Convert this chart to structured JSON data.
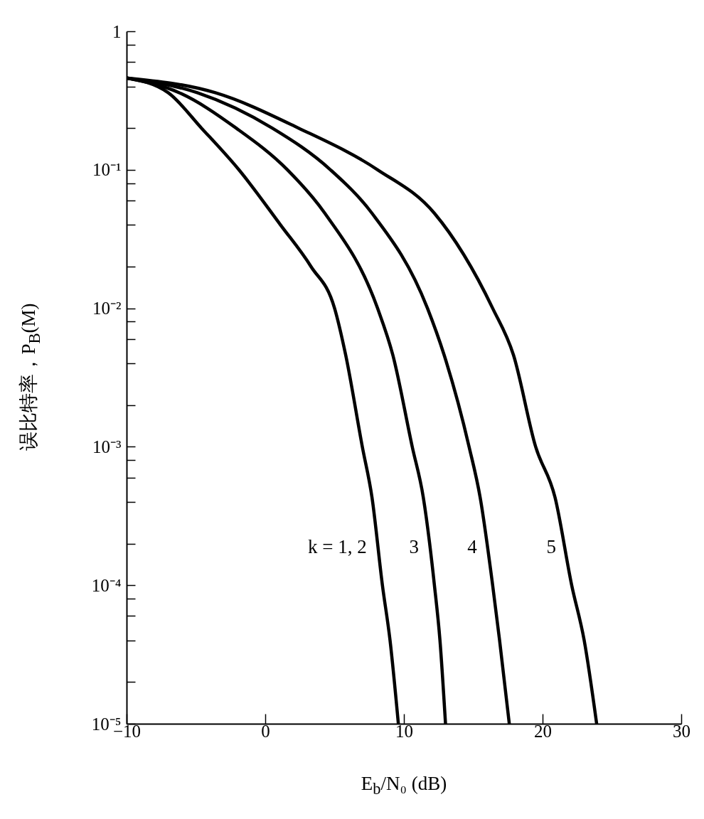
{
  "chart_data": {
    "type": "line",
    "xlabel": "E$_{b}$/N₀ (dB)",
    "ylabel": "误比特率，P$_{B}$(M)",
    "log": "y",
    "xlim": [
      -10,
      30
    ],
    "xticks": [
      -10,
      0,
      10,
      20,
      30
    ],
    "ylim": [
      1e-05,
      1
    ],
    "yticks": [
      1,
      {
        "value": 0.8,
        "label": null
      },
      {
        "value": 0.6,
        "label": null
      },
      {
        "value": 0.4,
        "label": null
      },
      {
        "value": 0.2,
        "label": null
      },
      {
        "value": 0.1,
        "label": "10⁻¹"
      },
      {
        "value": 0.08,
        "label": null
      },
      {
        "value": 0.06,
        "label": null
      },
      {
        "value": 0.04,
        "label": null
      },
      {
        "value": 0.02,
        "label": null
      },
      {
        "value": 0.01,
        "label": "10⁻²"
      },
      {
        "value": 0.008,
        "label": null
      },
      {
        "value": 0.006,
        "label": null
      },
      {
        "value": 0.004,
        "label": null
      },
      {
        "value": 0.002,
        "label": null
      },
      {
        "value": 0.001,
        "label": "10⁻³"
      },
      {
        "value": 0.0008,
        "label": null
      },
      {
        "value": 0.0006,
        "label": null
      },
      {
        "value": 0.0004,
        "label": null
      },
      {
        "value": 0.0002,
        "label": null
      },
      {
        "value": 0.0001,
        "label": "10⁻⁴"
      },
      {
        "value": 8e-05,
        "label": null
      },
      {
        "value": 6e-05,
        "label": null
      },
      {
        "value": 4e-05,
        "label": null
      },
      {
        "value": 2e-05,
        "label": null
      },
      {
        "value": 1e-05,
        "label": "10⁻⁵"
      }
    ],
    "series": [
      {
        "name": "k = 1, 2",
        "color": "#000000",
        "x": [
          -10,
          -7.0,
          -4.6,
          -1.9,
          1.1,
          3.3,
          5.0,
          5.8,
          7.0,
          7.7,
          8.45,
          9.0,
          9.6
        ],
        "values": [
          0.46,
          0.36,
          0.2,
          0.1,
          0.04,
          0.02,
          0.01,
          0.0046,
          0.001,
          0.00043,
          0.0001,
          4e-05,
          1e-05
        ]
      },
      {
        "name": "3",
        "color": "#000000",
        "x": [
          -10,
          -6.2,
          -2.1,
          1.6,
          4.3,
          8.1,
          9.2,
          10.6,
          11.4,
          12.2,
          12.6,
          13.0
        ],
        "values": [
          0.46,
          0.36,
          0.2,
          0.1,
          0.0485,
          0.01,
          0.0046,
          0.001,
          0.00043,
          0.0001,
          4e-05,
          1e-05
        ]
      },
      {
        "name": "4",
        "color": "#000000",
        "x": [
          -10,
          -4.9,
          0.5,
          4.7,
          7.7,
          11.7,
          12.9,
          14.7,
          15.5,
          16.4,
          16.9,
          17.6
        ],
        "values": [
          0.46,
          0.36,
          0.2,
          0.1,
          0.0485,
          0.01,
          0.0046,
          0.001,
          0.00043,
          0.0001,
          4e-05,
          1e-05
        ]
      },
      {
        "name": "5",
        "color": "#000000",
        "x": [
          -10,
          -3.6,
          2.4,
          8.1,
          12.2,
          16.4,
          17.9,
          19.5,
          20.9,
          22.1,
          23.0,
          23.9
        ],
        "values": [
          0.46,
          0.36,
          0.2,
          0.1,
          0.0485,
          0.01,
          0.0046,
          0.001,
          0.00043,
          0.0001,
          4e-05,
          1e-05
        ]
      }
    ]
  }
}
